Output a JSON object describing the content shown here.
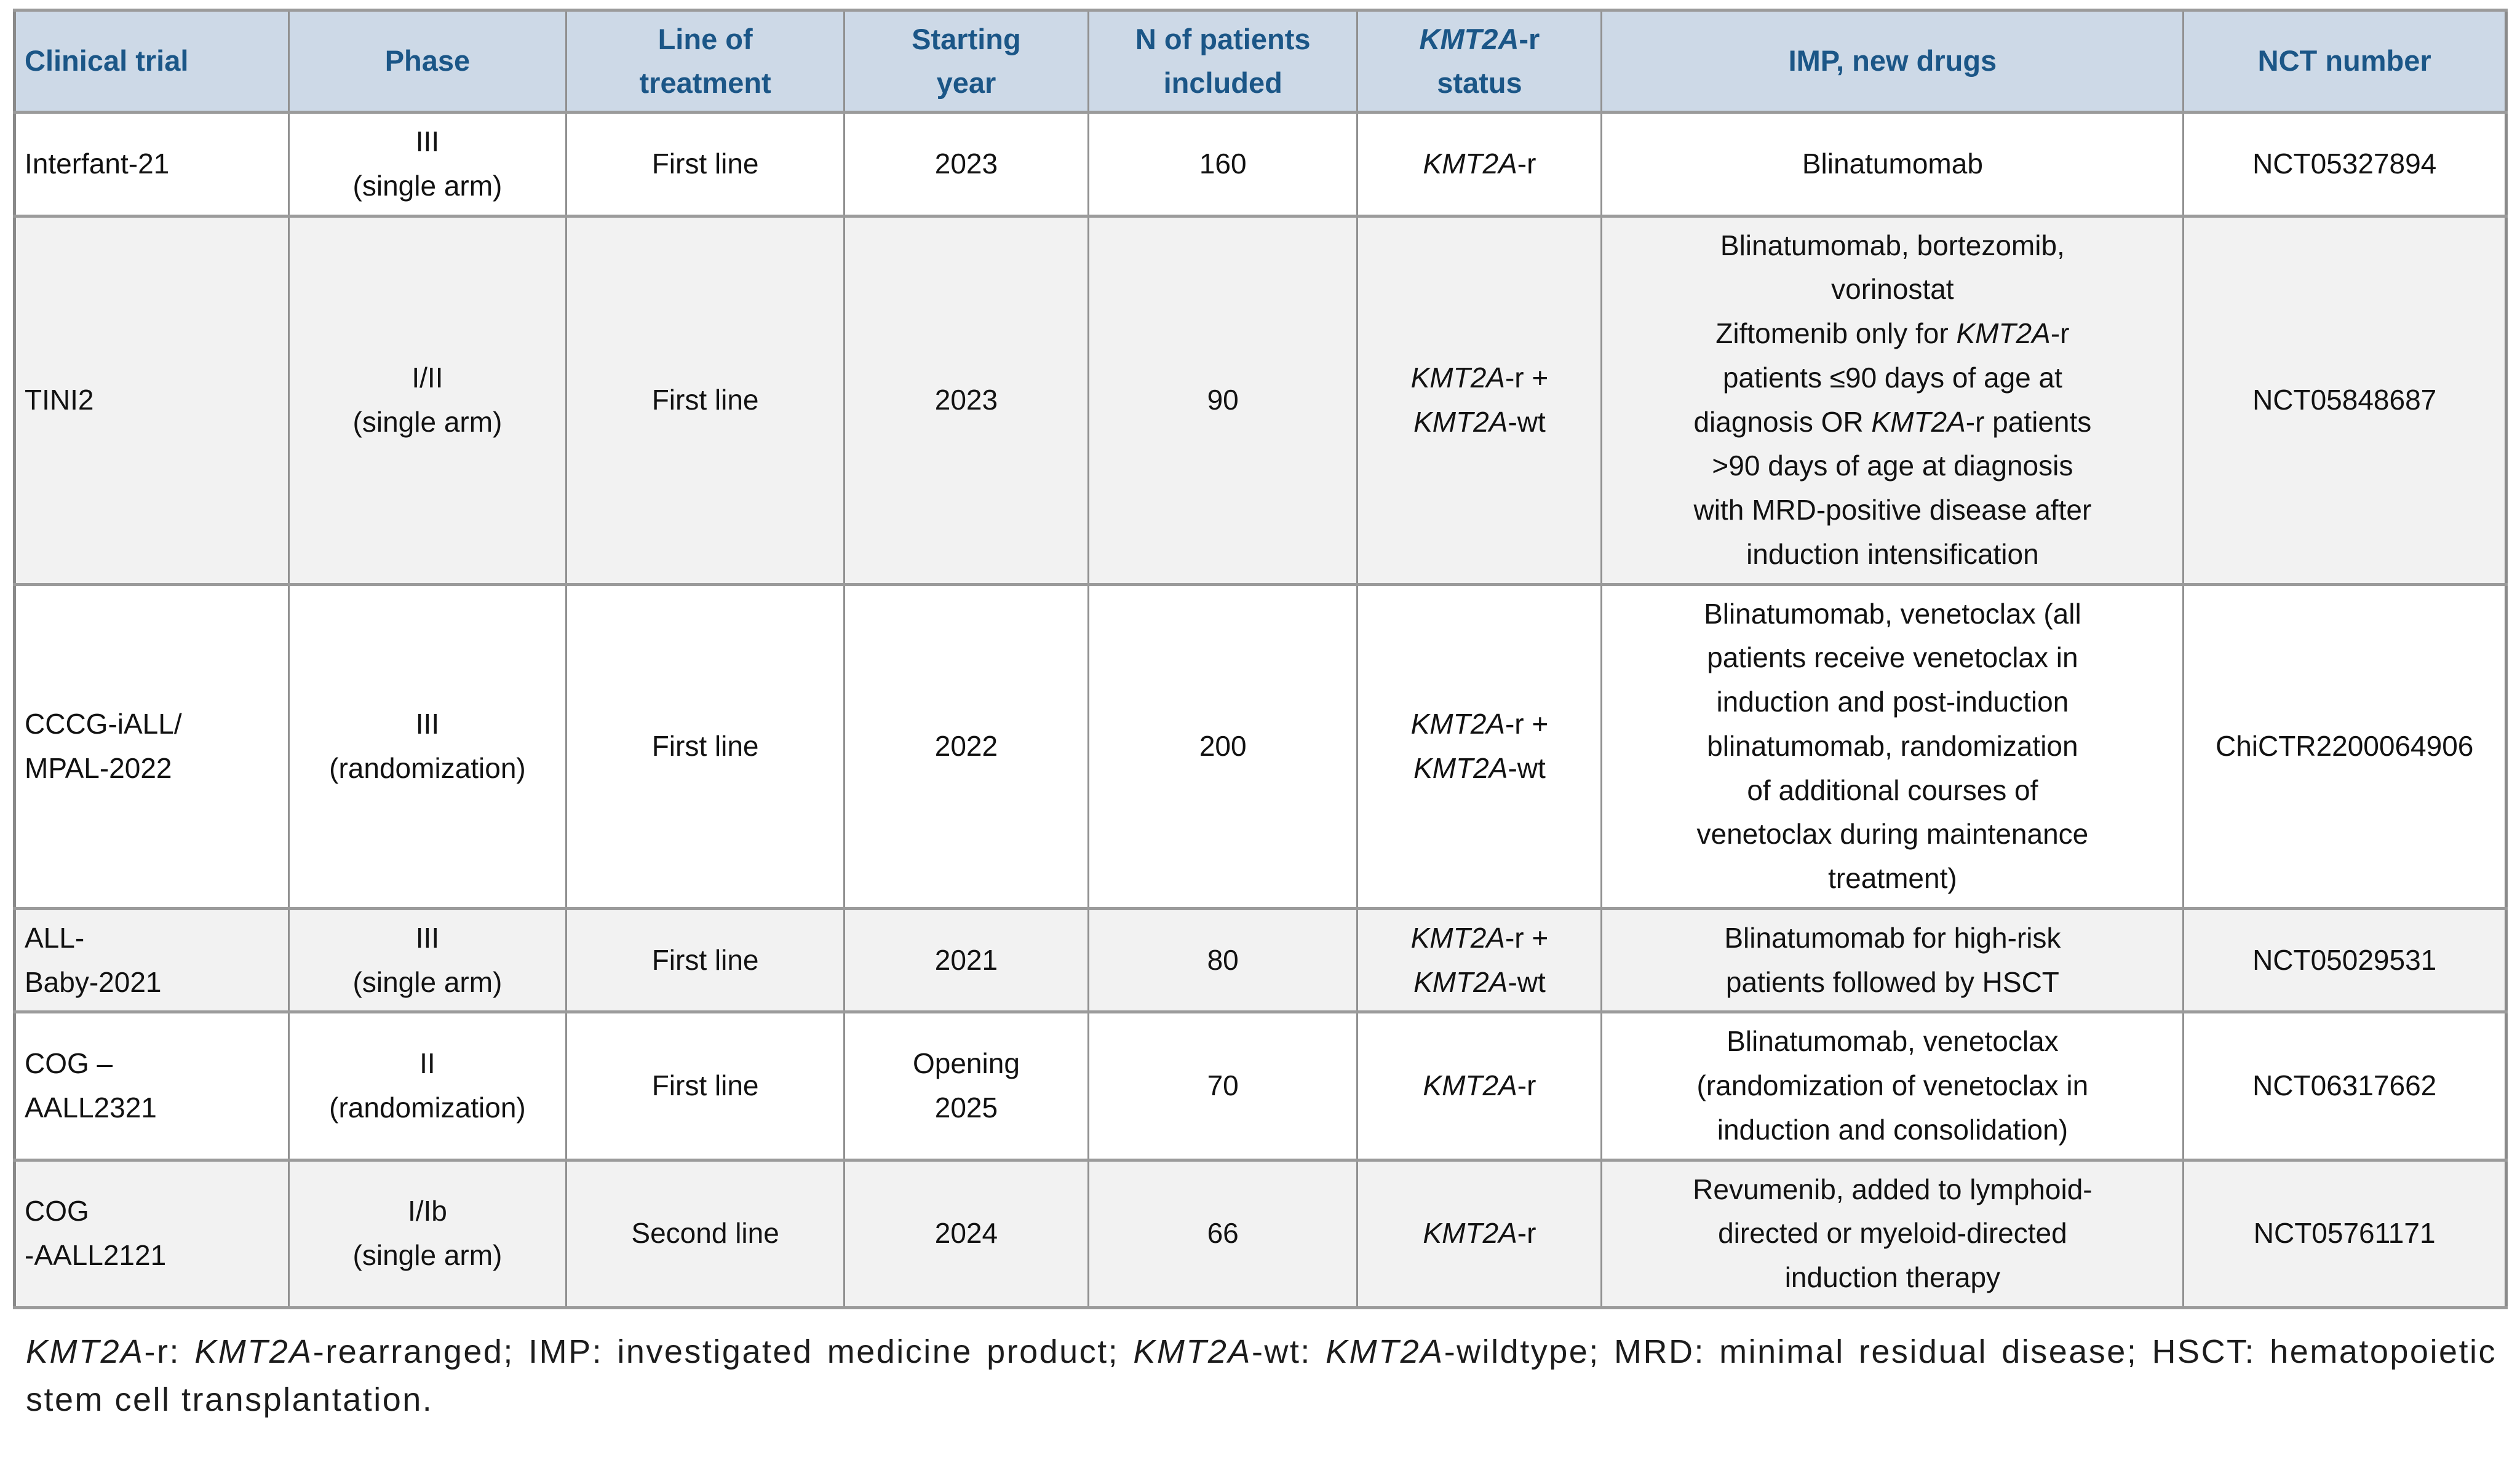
{
  "table": {
    "columns": [
      "Clinical trial",
      "Phase",
      "Line of\ntreatment",
      "Starting\nyear",
      "N of patients\nincluded",
      "*KMT2A*-r\nstatus",
      "IMP, new drugs",
      "NCT number"
    ],
    "rows": [
      {
        "trial": "Interfant-21",
        "phase": "III\n(single arm)",
        "line": "First line",
        "year": "2023",
        "n": "160",
        "status": "*KMT2A*-r",
        "imp": "Blinatumomab",
        "nct": "NCT05327894"
      },
      {
        "trial": "TINI2",
        "phase": "I/II\n(single arm)",
        "line": "First line",
        "year": "2023",
        "n": "90",
        "status": "*KMT2A*-r +\n*KMT2A*-wt",
        "imp": "Blinatumomab, bortezomib,\nvorinostat\nZiftomenib only for *KMT2A*-r\npatients ≤90 days of age at\ndiagnosis OR *KMT2A*-r patients\n>90 days of age at diagnosis\nwith MRD-positive disease after\ninduction intensification",
        "nct": "NCT05848687"
      },
      {
        "trial": "CCCG-iALL/\nMPAL-2022",
        "phase": "III\n(randomization)",
        "line": "First line",
        "year": "2022",
        "n": "200",
        "status": "*KMT2A*-r +\n*KMT2A*-wt",
        "imp": "Blinatumomab, venetoclax (all\npatients receive venetoclax in\ninduction and post-induction\nblinatumomab, randomization\nof additional courses of\nvenetoclax during maintenance\ntreatment)",
        "nct": "ChiCTR2200064906"
      },
      {
        "trial": "ALL-\nBaby-2021",
        "phase": "III\n(single arm)",
        "line": "First line",
        "year": "2021",
        "n": "80",
        "status": "*KMT2A*-r +\n*KMT2A*-wt",
        "imp": "Blinatumomab for high-risk\npatients followed by HSCT",
        "nct": "NCT05029531"
      },
      {
        "trial": "COG –\nAALL2321",
        "phase": "II\n(randomization)",
        "line": "First line",
        "year": "Opening\n2025",
        "n": "70",
        "status": "*KMT2A*-r",
        "imp": "Blinatumomab, venetoclax\n(randomization of venetoclax in\ninduction and consolidation)",
        "nct": "NCT06317662"
      },
      {
        "trial": "COG\n-AALL2121",
        "phase": "I/Ib\n(single arm)",
        "line": "Second line",
        "year": "2024",
        "n": "66",
        "status": "*KMT2A*-r",
        "imp": "Revumenib, added to lymphoid-\ndirected or myeloid-directed\ninduction therapy",
        "nct": "NCT05761171"
      }
    ]
  },
  "footnote": "*KMT2A*-r: *KMT2A*-rearranged; IMP: investigated medicine product; *KMT2A*-wt: *KMT2A*-wildtype; MRD: minimal residual disease; HSCT: hematopoietic stem cell transplantation.",
  "colors": {
    "header_background": "#cdd9e7",
    "header_text": "#1b5687",
    "row_stripe": "#f2f2f2",
    "border": "#909090"
  }
}
